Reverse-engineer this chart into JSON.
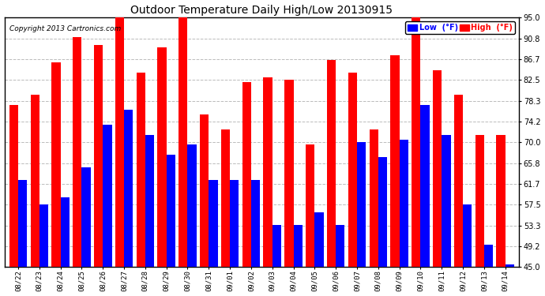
{
  "title": "Outdoor Temperature Daily High/Low 20130915",
  "copyright": "Copyright 2013 Cartronics.com",
  "legend_low": "Low  (°F)",
  "legend_high": "High  (°F)",
  "low_color": "#0000FF",
  "high_color": "#FF0000",
  "bg_color": "#FFFFFF",
  "plot_bg_color": "#FFFFFF",
  "grid_color": "#BBBBBB",
  "ylim": [
    45.0,
    95.0
  ],
  "yticks": [
    45.0,
    49.2,
    53.3,
    57.5,
    61.7,
    65.8,
    70.0,
    74.2,
    78.3,
    82.5,
    86.7,
    90.8,
    95.0
  ],
  "dates": [
    "08/22",
    "08/23",
    "08/24",
    "08/25",
    "08/26",
    "08/27",
    "08/28",
    "08/29",
    "08/30",
    "08/31",
    "09/01",
    "09/02",
    "09/03",
    "09/04",
    "09/05",
    "09/06",
    "09/07",
    "09/08",
    "09/09",
    "09/10",
    "09/11",
    "09/12",
    "09/13",
    "09/14"
  ],
  "highs": [
    77.5,
    79.5,
    86.0,
    91.0,
    89.5,
    95.5,
    84.0,
    89.0,
    95.5,
    75.5,
    72.5,
    82.0,
    83.0,
    82.5,
    69.5,
    86.5,
    84.0,
    72.5,
    87.5,
    95.0,
    84.5,
    79.5,
    71.5,
    71.5
  ],
  "lows": [
    62.5,
    57.5,
    59.0,
    65.0,
    73.5,
    76.5,
    71.5,
    67.5,
    69.5,
    62.5,
    62.5,
    62.5,
    53.5,
    53.5,
    56.0,
    53.5,
    70.0,
    67.0,
    70.5,
    77.5,
    71.5,
    57.5,
    49.5,
    45.5
  ]
}
